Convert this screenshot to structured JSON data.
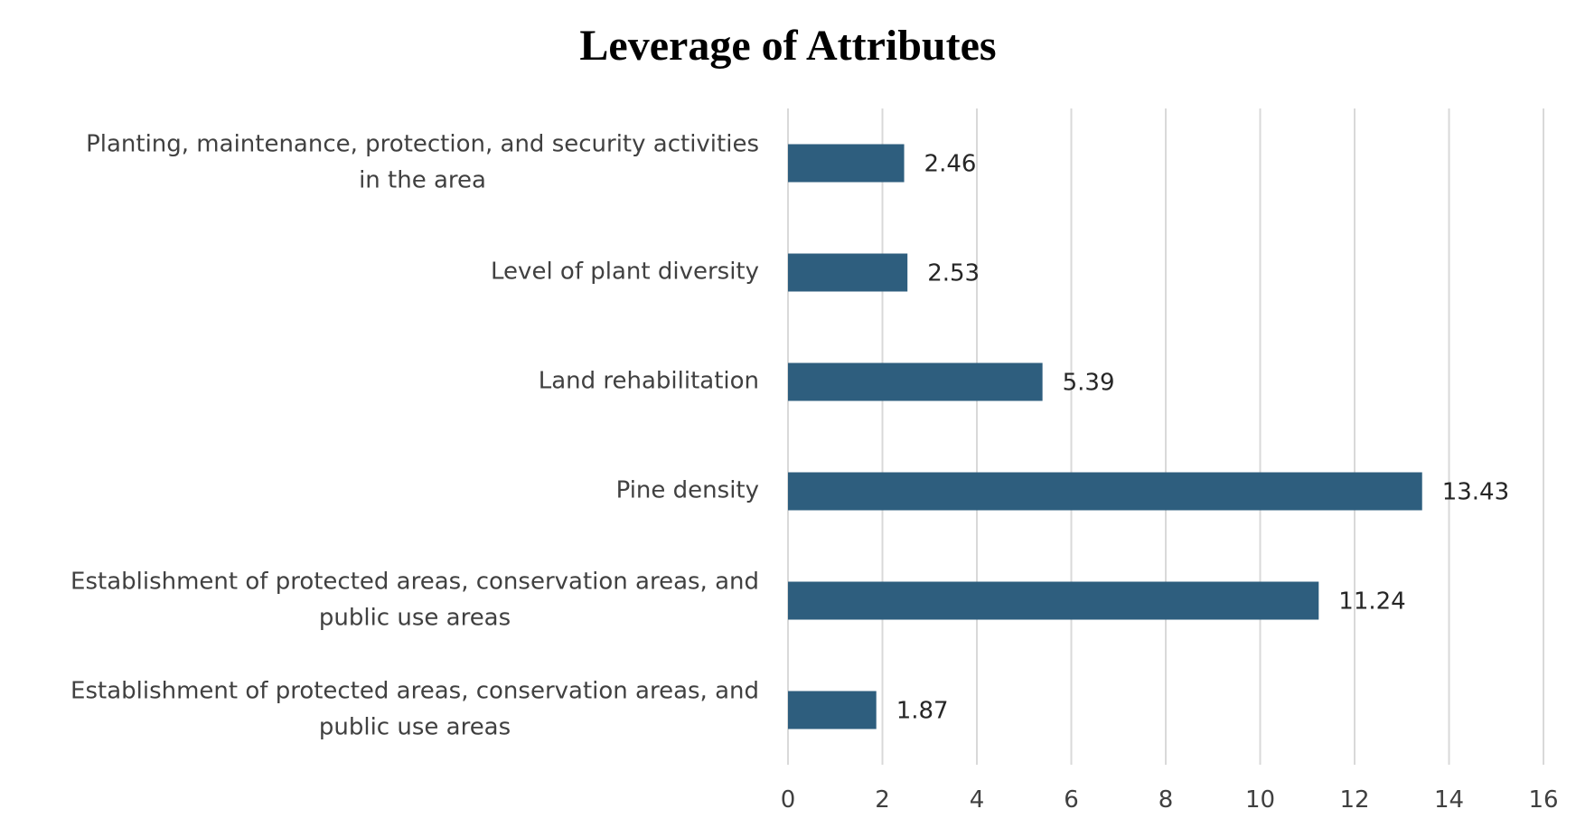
{
  "chart_data": {
    "type": "bar",
    "orientation": "horizontal",
    "title": "Leverage of Attributes",
    "categories": [
      [
        "Planting, maintenance, protection, and security activities",
        "in the area"
      ],
      [
        "Level of plant diversity"
      ],
      [
        "Land rehabilitation"
      ],
      [
        "Pine density"
      ],
      [
        "Establishment of protected areas, conservation areas, and",
        "public use areas"
      ],
      [
        "Establishment of protected areas, conservation areas, and",
        "public use areas"
      ]
    ],
    "values": [
      2.46,
      2.53,
      5.39,
      13.43,
      11.24,
      1.87
    ],
    "value_labels": [
      "2.46",
      "2.53",
      "5.39",
      "13.43",
      "11.24",
      "1.87"
    ],
    "xlim": [
      0,
      16
    ],
    "xticks": [
      "0",
      "2",
      "4",
      "6",
      "8",
      "10",
      "12",
      "14",
      "16"
    ],
    "xlabel": "",
    "ylabel": "",
    "grid": true,
    "legend": "none"
  },
  "colors": {
    "bar": "#2e5e7e",
    "grid": "#d9d9d9"
  }
}
